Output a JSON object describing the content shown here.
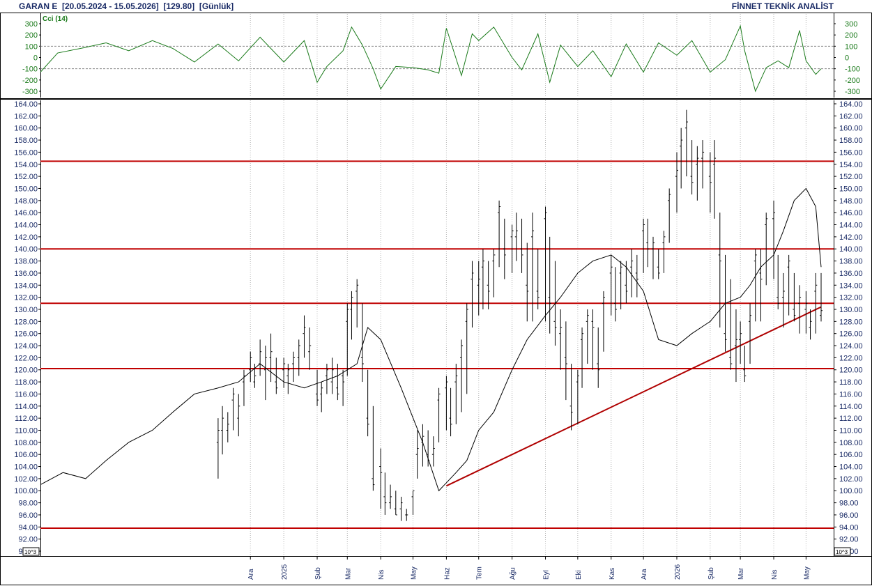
{
  "header": {
    "symbol": "GARAN E",
    "range": "[20.05.2024 - 15.05.2026]",
    "last": "[129.80]",
    "period": "[Günlük]",
    "brand": "FİNNET TEKNİK ANALİST"
  },
  "colors": {
    "price": "#000000",
    "ma": "#000000",
    "level": "#c00000",
    "trend": "#b00000",
    "cci": "#1a7a1a",
    "axis_text": "#1a2b66",
    "grid": "#b4b4b4"
  },
  "chart_data": [
    {
      "type": "line",
      "title": "Cci (14)",
      "ylim": [
        -350,
        350
      ],
      "yticks": [
        300,
        200,
        100,
        0,
        -100,
        -200,
        -300
      ],
      "reference_lines": [
        100,
        -100
      ],
      "series": [
        {
          "x": [
            "2024-05-20",
            "2024-06-05",
            "2024-07-01",
            "2024-07-20",
            "2024-08-10",
            "2024-09-01",
            "2024-09-20",
            "2024-10-10",
            "2024-11-01",
            "2024-11-20",
            "2024-12-10",
            "2025-01-01",
            "2025-01-20",
            "2025-02-01",
            "2025-02-10",
            "2025-02-25",
            "2025-03-05",
            "2025-03-15",
            "2025-03-25",
            "2025-04-01",
            "2025-04-15",
            "2025-05-01",
            "2025-05-15",
            "2025-05-25",
            "2025-06-01",
            "2025-06-15",
            "2025-06-25",
            "2025-07-01",
            "2025-07-15",
            "2025-08-01",
            "2025-08-10",
            "2025-08-25",
            "2025-09-05",
            "2025-09-15",
            "2025-10-01",
            "2025-10-15",
            "2025-11-01",
            "2025-11-15",
            "2025-12-01",
            "2025-12-15",
            "2026-01-01",
            "2026-01-15",
            "2026-02-01",
            "2026-02-15",
            "2026-03-01",
            "2026-03-05",
            "2026-03-15",
            "2026-03-25",
            "2026-04-05",
            "2026-04-15",
            "2026-04-25",
            "2026-05-01",
            "2026-05-10",
            "2026-05-15"
          ],
          "y": [
            -130,
            40,
            90,
            130,
            60,
            150,
            80,
            -40,
            120,
            -30,
            180,
            -40,
            150,
            -220,
            -80,
            60,
            270,
            110,
            -100,
            -280,
            -80,
            -90,
            -110,
            -140,
            260,
            -160,
            210,
            150,
            270,
            0,
            -110,
            210,
            -220,
            110,
            -80,
            60,
            -170,
            120,
            -130,
            130,
            20,
            150,
            -130,
            -20,
            280,
            60,
            -300,
            -90,
            -30,
            -90,
            240,
            -30,
            -150,
            -100
          ]
        }
      ]
    },
    {
      "type": "bar",
      "series_type": "ohlc",
      "ylim": [
        90,
        164
      ],
      "yticks": [
        164,
        162,
        160,
        158,
        156,
        154,
        152,
        150,
        148,
        146,
        144,
        142,
        140,
        138,
        136,
        134,
        132,
        130,
        128,
        126,
        124,
        122,
        120,
        118,
        116,
        114,
        112,
        110,
        108,
        106,
        104,
        102,
        100,
        98,
        96,
        94,
        92,
        90
      ],
      "ytick_labels": [
        "164.00",
        "162.00",
        "160.00",
        "158.00",
        "156.00",
        "154.00",
        "152.00",
        "150.00",
        "148.00",
        "146.00",
        "144.00",
        "142.00",
        "140.00",
        "138.00",
        "136.00",
        "134.00",
        "132.00",
        "130.00",
        "128.00",
        "126.00",
        "124.00",
        "122.00",
        "120.00",
        "118.00",
        "116.00",
        "114.00",
        "112.00",
        "110.00",
        "108.00",
        "106.00",
        "104.00",
        "102.00",
        "100.00",
        "98.00",
        "96.00",
        "94.00",
        "92.00",
        "90.00"
      ],
      "corner_label": "10^3",
      "x_month_labels": [
        {
          "date": "2024-12-01",
          "label": "Ara"
        },
        {
          "date": "2025-01-01",
          "label": "2025"
        },
        {
          "date": "2025-02-01",
          "label": "Şub"
        },
        {
          "date": "2025-03-01",
          "label": "Mar"
        },
        {
          "date": "2025-04-01",
          "label": "Nis"
        },
        {
          "date": "2025-05-01",
          "label": "May"
        },
        {
          "date": "2025-06-01",
          "label": "Haz"
        },
        {
          "date": "2025-07-01",
          "label": "Tem"
        },
        {
          "date": "2025-08-01",
          "label": "Ağu"
        },
        {
          "date": "2025-09-01",
          "label": "Eyl"
        },
        {
          "date": "2025-10-01",
          "label": "Eki"
        },
        {
          "date": "2025-11-01",
          "label": "Kas"
        },
        {
          "date": "2025-12-01",
          "label": "Ara"
        },
        {
          "date": "2026-01-01",
          "label": "2026"
        },
        {
          "date": "2026-02-01",
          "label": "Şub"
        },
        {
          "date": "2026-03-01",
          "label": "Mar"
        },
        {
          "date": "2026-04-01",
          "label": "Nis"
        },
        {
          "date": "2026-05-01",
          "label": "May"
        }
      ],
      "series": [
        {
          "name": "Price",
          "x": [
            "2024-11-01",
            "2024-11-05",
            "2024-11-10",
            "2024-11-15",
            "2024-11-20",
            "2024-11-25",
            "2024-12-01",
            "2024-12-05",
            "2024-12-10",
            "2024-12-15",
            "2024-12-20",
            "2024-12-25",
            "2025-01-01",
            "2025-01-05",
            "2025-01-10",
            "2025-01-15",
            "2025-01-20",
            "2025-01-25",
            "2025-02-01",
            "2025-02-05",
            "2025-02-10",
            "2025-02-15",
            "2025-02-20",
            "2025-02-25",
            "2025-03-01",
            "2025-03-05",
            "2025-03-10",
            "2025-03-15",
            "2025-03-20",
            "2025-03-25",
            "2025-04-01",
            "2025-04-05",
            "2025-04-10",
            "2025-04-15",
            "2025-04-20",
            "2025-04-25",
            "2025-05-01",
            "2025-05-05",
            "2025-05-10",
            "2025-05-15",
            "2025-05-20",
            "2025-05-25",
            "2025-06-01",
            "2025-06-05",
            "2025-06-10",
            "2025-06-15",
            "2025-06-20",
            "2025-06-25",
            "2025-07-01",
            "2025-07-05",
            "2025-07-10",
            "2025-07-15",
            "2025-07-20",
            "2025-07-25",
            "2025-08-01",
            "2025-08-05",
            "2025-08-10",
            "2025-08-15",
            "2025-08-20",
            "2025-08-25",
            "2025-09-01",
            "2025-09-05",
            "2025-09-10",
            "2025-09-15",
            "2025-09-20",
            "2025-09-25",
            "2025-10-01",
            "2025-10-05",
            "2025-10-10",
            "2025-10-15",
            "2025-10-20",
            "2025-10-25",
            "2025-11-01",
            "2025-11-05",
            "2025-11-10",
            "2025-11-15",
            "2025-11-20",
            "2025-11-25",
            "2025-12-01",
            "2025-12-05",
            "2025-12-10",
            "2025-12-15",
            "2025-12-20",
            "2025-12-25",
            "2026-01-01",
            "2026-01-05",
            "2026-01-10",
            "2026-01-15",
            "2026-01-20",
            "2026-01-25",
            "2026-02-01",
            "2026-02-05",
            "2026-02-10",
            "2026-02-15",
            "2026-02-20",
            "2026-02-25",
            "2026-03-01",
            "2026-03-05",
            "2026-03-10",
            "2026-03-15",
            "2026-03-20",
            "2026-03-25",
            "2026-04-01",
            "2026-04-05",
            "2026-04-10",
            "2026-04-15",
            "2026-04-20",
            "2026-04-25",
            "2026-05-01",
            "2026-05-05",
            "2026-05-10",
            "2026-05-15"
          ],
          "high": [
            112,
            114,
            113,
            117,
            116,
            120,
            123,
            121,
            125,
            124,
            126,
            122,
            122,
            121,
            123,
            125,
            129,
            127,
            120,
            118,
            121,
            122,
            121,
            120,
            131,
            133,
            135,
            131,
            120,
            114,
            107,
            103,
            101,
            100,
            99,
            97,
            100,
            110,
            111,
            110,
            109,
            117,
            119,
            117,
            121,
            125,
            131,
            138,
            138,
            140,
            138,
            140,
            148,
            145,
            144,
            146,
            145,
            141,
            146,
            140,
            147,
            142,
            138,
            130,
            128,
            121,
            120,
            127,
            130,
            130,
            127,
            133,
            139,
            137,
            138,
            138,
            140,
            139,
            145,
            145,
            142,
            140,
            143,
            150,
            156,
            160,
            163,
            158,
            157,
            158,
            156,
            158,
            146,
            139,
            135,
            130,
            128,
            124,
            131,
            140,
            140,
            146,
            148,
            139,
            136,
            139,
            136,
            134,
            133,
            130,
            136,
            136
          ],
          "low": [
            102,
            106,
            108,
            110,
            109,
            114,
            118,
            117,
            119,
            115,
            118,
            116,
            117,
            116,
            118,
            119,
            122,
            120,
            114,
            113,
            116,
            116,
            115,
            114,
            119,
            125,
            127,
            118,
            109,
            100,
            97,
            96,
            97,
            96,
            95,
            95,
            96,
            102,
            104,
            104,
            104,
            108,
            110,
            109,
            111,
            113,
            116,
            127,
            129,
            130,
            130,
            132,
            137,
            135,
            136,
            138,
            136,
            128,
            128,
            130,
            128,
            126,
            124,
            120,
            115,
            110,
            111,
            117,
            121,
            120,
            117,
            123,
            129,
            128,
            130,
            131,
            132,
            132,
            136,
            137,
            135,
            135,
            136,
            141,
            146,
            150,
            152,
            149,
            148,
            150,
            146,
            145,
            127,
            123,
            120,
            118,
            121,
            118,
            121,
            128,
            128,
            134,
            135,
            130,
            127,
            129,
            128,
            126,
            126,
            125,
            126,
            128
          ],
          "open": [
            108,
            110,
            110,
            115,
            112,
            118,
            120,
            118,
            121,
            120,
            122,
            118,
            120,
            119,
            121,
            122,
            126,
            123,
            116,
            116,
            119,
            118,
            117,
            119,
            128,
            130,
            133,
            122,
            112,
            102,
            104,
            99,
            98,
            97,
            97,
            96,
            99,
            106,
            108,
            106,
            106,
            115,
            117,
            112,
            118,
            122,
            128,
            135,
            134,
            137,
            134,
            138,
            146,
            140,
            142,
            142,
            140,
            134,
            142,
            133,
            145,
            132,
            128,
            126,
            122,
            114,
            118,
            125,
            128,
            128,
            121,
            131,
            136,
            131,
            136,
            134,
            137,
            136,
            143,
            141,
            140,
            137,
            141,
            148,
            152,
            157,
            160,
            152,
            154,
            155,
            152,
            154,
            139,
            126,
            122,
            124,
            125,
            120,
            128,
            138,
            136,
            144,
            145,
            132,
            132,
            137,
            130,
            131,
            130,
            127,
            133,
            129
          ],
          "close": [
            110,
            112,
            111,
            116,
            114,
            119,
            122,
            119,
            123,
            122,
            123,
            117,
            121,
            120,
            122,
            124,
            127,
            124,
            115,
            117,
            120,
            120,
            116,
            118,
            130,
            132,
            134,
            121,
            111,
            101,
            103,
            98,
            99,
            96,
            98,
            96,
            100,
            107,
            109,
            105,
            107,
            116,
            118,
            111,
            119,
            124,
            130,
            136,
            135,
            138,
            133,
            139,
            147,
            139,
            143,
            143,
            139,
            133,
            143,
            132,
            146,
            131,
            127,
            127,
            121,
            113,
            119,
            126,
            129,
            127,
            120,
            132,
            137,
            130,
            137,
            133,
            138,
            135,
            144,
            140,
            141,
            136,
            142,
            149,
            153,
            158,
            161,
            151,
            155,
            156,
            151,
            155,
            138,
            125,
            121,
            125,
            126,
            119,
            129,
            139,
            135,
            145,
            146,
            131,
            133,
            138,
            129,
            132,
            131,
            128,
            134,
            129.8
          ]
        },
        {
          "name": "Moving Average",
          "x": [
            "2024-05-20",
            "2024-06-10",
            "2024-07-01",
            "2024-07-20",
            "2024-08-10",
            "2024-09-01",
            "2024-09-20",
            "2024-10-10",
            "2024-11-01",
            "2024-11-20",
            "2024-12-10",
            "2025-01-01",
            "2025-01-20",
            "2025-02-05",
            "2025-02-20",
            "2025-03-10",
            "2025-03-20",
            "2025-04-01",
            "2025-04-20",
            "2025-05-10",
            "2025-05-25",
            "2025-06-10",
            "2025-06-20",
            "2025-07-01",
            "2025-07-15",
            "2025-08-01",
            "2025-08-15",
            "2025-09-01",
            "2025-09-15",
            "2025-10-01",
            "2025-10-15",
            "2025-11-01",
            "2025-11-15",
            "2025-12-01",
            "2025-12-15",
            "2026-01-01",
            "2026-01-15",
            "2026-02-01",
            "2026-02-15",
            "2026-03-01",
            "2026-03-10",
            "2026-03-20",
            "2026-04-01",
            "2026-04-10",
            "2026-04-20",
            "2026-05-01",
            "2026-05-10",
            "2026-05-15"
          ],
          "y": [
            101,
            103,
            102,
            105,
            108,
            110,
            113,
            116,
            117,
            118,
            121,
            118,
            117,
            118,
            119,
            121,
            127,
            125,
            117,
            108,
            100,
            103,
            105,
            110,
            113,
            120,
            125,
            129,
            132,
            136,
            138,
            139,
            137,
            133,
            125,
            124,
            126,
            128,
            131,
            132,
            134,
            137,
            139,
            143,
            148,
            150,
            147,
            137
          ]
        }
      ],
      "levels": [
        154.5,
        140.0,
        131.0,
        120.2,
        93.8
      ],
      "trendline": {
        "start": {
          "x": "2025-06-01",
          "y": 100.8
        },
        "end": {
          "x": "2026-05-15",
          "y": 130.4
        }
      }
    }
  ]
}
